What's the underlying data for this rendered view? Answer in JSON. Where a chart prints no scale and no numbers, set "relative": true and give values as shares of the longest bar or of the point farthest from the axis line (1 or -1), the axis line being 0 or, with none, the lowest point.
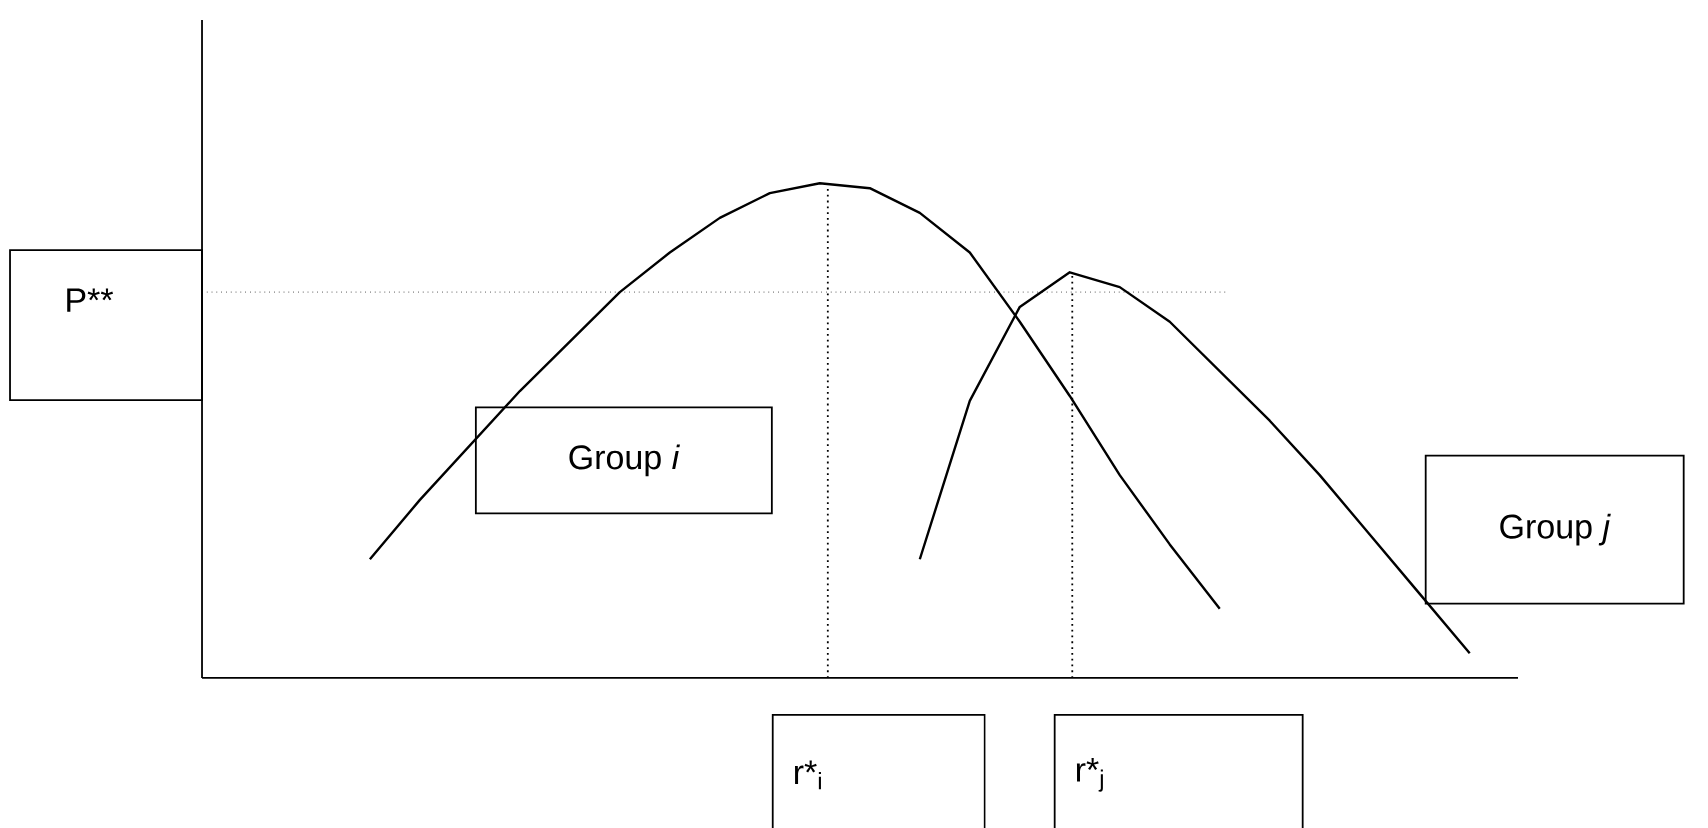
{
  "chart_data": {
    "type": "line",
    "relative": true,
    "legend": false,
    "marker": "none",
    "line_style": "solid",
    "categories": [
      null,
      null,
      null,
      null,
      null,
      null,
      null,
      null,
      null,
      null,
      null,
      null,
      null,
      null,
      null,
      null,
      null,
      null,
      null,
      null,
      null,
      null,
      null
    ],
    "series": [
      {
        "name": "Group *i*",
        "color": "#000000",
        "values": [
          0.24,
          0.36,
          0.47,
          0.58,
          0.68,
          0.78,
          0.86,
          0.93,
          0.98,
          1.0,
          0.99,
          0.94,
          0.86,
          0.72,
          0.57,
          0.41,
          0.27,
          0.14,
          null,
          null,
          null,
          null,
          null
        ]
      },
      {
        "name": "Group *j*",
        "color": "#000000",
        "values": [
          null,
          null,
          null,
          null,
          null,
          null,
          null,
          null,
          null,
          null,
          null,
          0.24,
          0.56,
          0.75,
          0.82,
          0.79,
          0.72,
          0.62,
          0.52,
          0.41,
          0.29,
          0.17,
          0.05
        ]
      }
    ],
    "ref_lines": [
      {
        "axis": "y",
        "value": 0.78,
        "label": "P**",
        "line_style": "dotted"
      }
    ],
    "annotations": [
      "r*$_{i}$",
      "r*$_{j}$"
    ]
  }
}
